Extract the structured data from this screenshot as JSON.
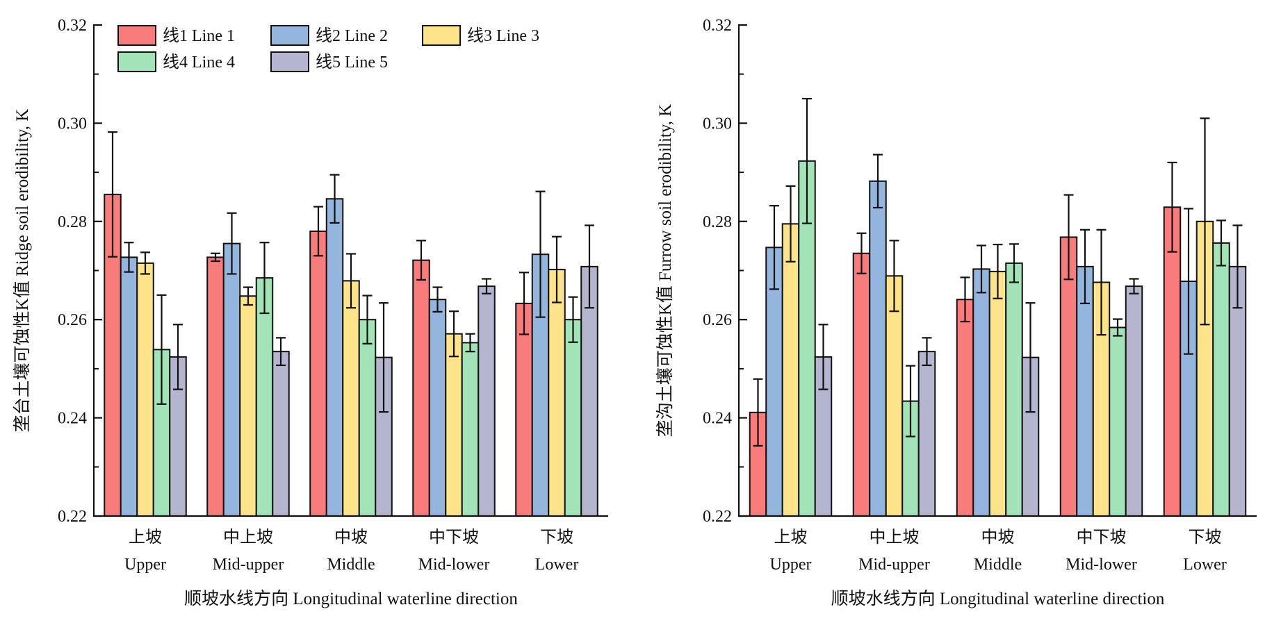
{
  "chart_data": [
    {
      "type": "bar",
      "title": "",
      "xlabel": "顺坡水线方向 Longitudinal waterline direction",
      "ylabel": "垄台土壤可蚀性K值 Ridge soil erodibility, K",
      "ylim": [
        0.22,
        0.32
      ],
      "yticks": [
        "0.22",
        "0.24",
        "0.26",
        "0.28",
        "0.30",
        "0.32"
      ],
      "categories_cn": [
        "上坡",
        "中上坡",
        "中坡",
        "中下坡",
        "下坡"
      ],
      "categories": [
        "Upper",
        "Mid-upper",
        "Middle",
        "Mid-lower",
        "Lower"
      ],
      "legend": "top-left",
      "grid": false,
      "series": [
        {
          "name": "线1 Line 1",
          "color": "#f87c7c",
          "values": [
            0.2855,
            0.2727,
            0.278,
            0.2721,
            0.2633
          ],
          "errors": [
            0.0127,
            0.0008,
            0.005,
            0.004,
            0.0063
          ]
        },
        {
          "name": "线2 Line 2",
          "color": "#94b5dd",
          "values": [
            0.2727,
            0.2755,
            0.2846,
            0.2641,
            0.2733
          ],
          "errors": [
            0.003,
            0.0062,
            0.0049,
            0.0025,
            0.0128
          ]
        },
        {
          "name": "线3 Line 3",
          "color": "#fde38a",
          "values": [
            0.2715,
            0.2648,
            0.2679,
            0.2571,
            0.2702
          ],
          "errors": [
            0.0022,
            0.0018,
            0.0055,
            0.0046,
            0.0067
          ]
        },
        {
          "name": "线4 Line 4",
          "color": "#a2e3b8",
          "values": [
            0.2539,
            0.2685,
            0.26,
            0.2553,
            0.26
          ],
          "errors": [
            0.0111,
            0.0072,
            0.0049,
            0.0018,
            0.0046
          ]
        },
        {
          "name": "线5 Line 5",
          "color": "#b5b5cf",
          "values": [
            0.2524,
            0.2535,
            0.2523,
            0.2668,
            0.2708
          ],
          "errors": [
            0.0066,
            0.0028,
            0.0111,
            0.0015,
            0.0084
          ]
        }
      ]
    },
    {
      "type": "bar",
      "title": "",
      "xlabel": "顺坡水线方向 Longitudinal waterline direction",
      "ylabel": "垄沟土壤可蚀性K值 Furrow soil erodibility, K",
      "ylim": [
        0.22,
        0.32
      ],
      "yticks": [
        "0.22",
        "0.24",
        "0.26",
        "0.28",
        "0.30",
        "0.32"
      ],
      "categories_cn": [
        "上坡",
        "中上坡",
        "中坡",
        "中下坡",
        "下坡"
      ],
      "categories": [
        "Upper",
        "Mid-upper",
        "Middle",
        "Mid-lower",
        "Lower"
      ],
      "grid": false,
      "series": [
        {
          "name": "线1 Line 1",
          "color": "#f87c7c",
          "values": [
            0.2411,
            0.2735,
            0.2641,
            0.2768,
            0.2829
          ],
          "errors": [
            0.0068,
            0.0041,
            0.0045,
            0.0086,
            0.0091
          ]
        },
        {
          "name": "线2 Line 2",
          "color": "#94b5dd",
          "values": [
            0.2747,
            0.2882,
            0.2703,
            0.2708,
            0.2678
          ],
          "errors": [
            0.0085,
            0.0054,
            0.0048,
            0.0075,
            0.0148
          ]
        },
        {
          "name": "线3 Line 3",
          "color": "#fde38a",
          "values": [
            0.2795,
            0.2689,
            0.2698,
            0.2676,
            0.28
          ],
          "errors": [
            0.0077,
            0.0072,
            0.0055,
            0.0107,
            0.021
          ]
        },
        {
          "name": "线4 Line 4",
          "color": "#a2e3b8",
          "values": [
            0.2923,
            0.2434,
            0.2715,
            0.2584,
            0.2756
          ],
          "errors": [
            0.0127,
            0.0072,
            0.0039,
            0.0017,
            0.0046
          ]
        },
        {
          "name": "线5 Line 5",
          "color": "#b5b5cf",
          "values": [
            0.2524,
            0.2535,
            0.2523,
            0.2668,
            0.2708
          ],
          "errors": [
            0.0066,
            0.0028,
            0.0111,
            0.0015,
            0.0084
          ]
        }
      ]
    }
  ]
}
